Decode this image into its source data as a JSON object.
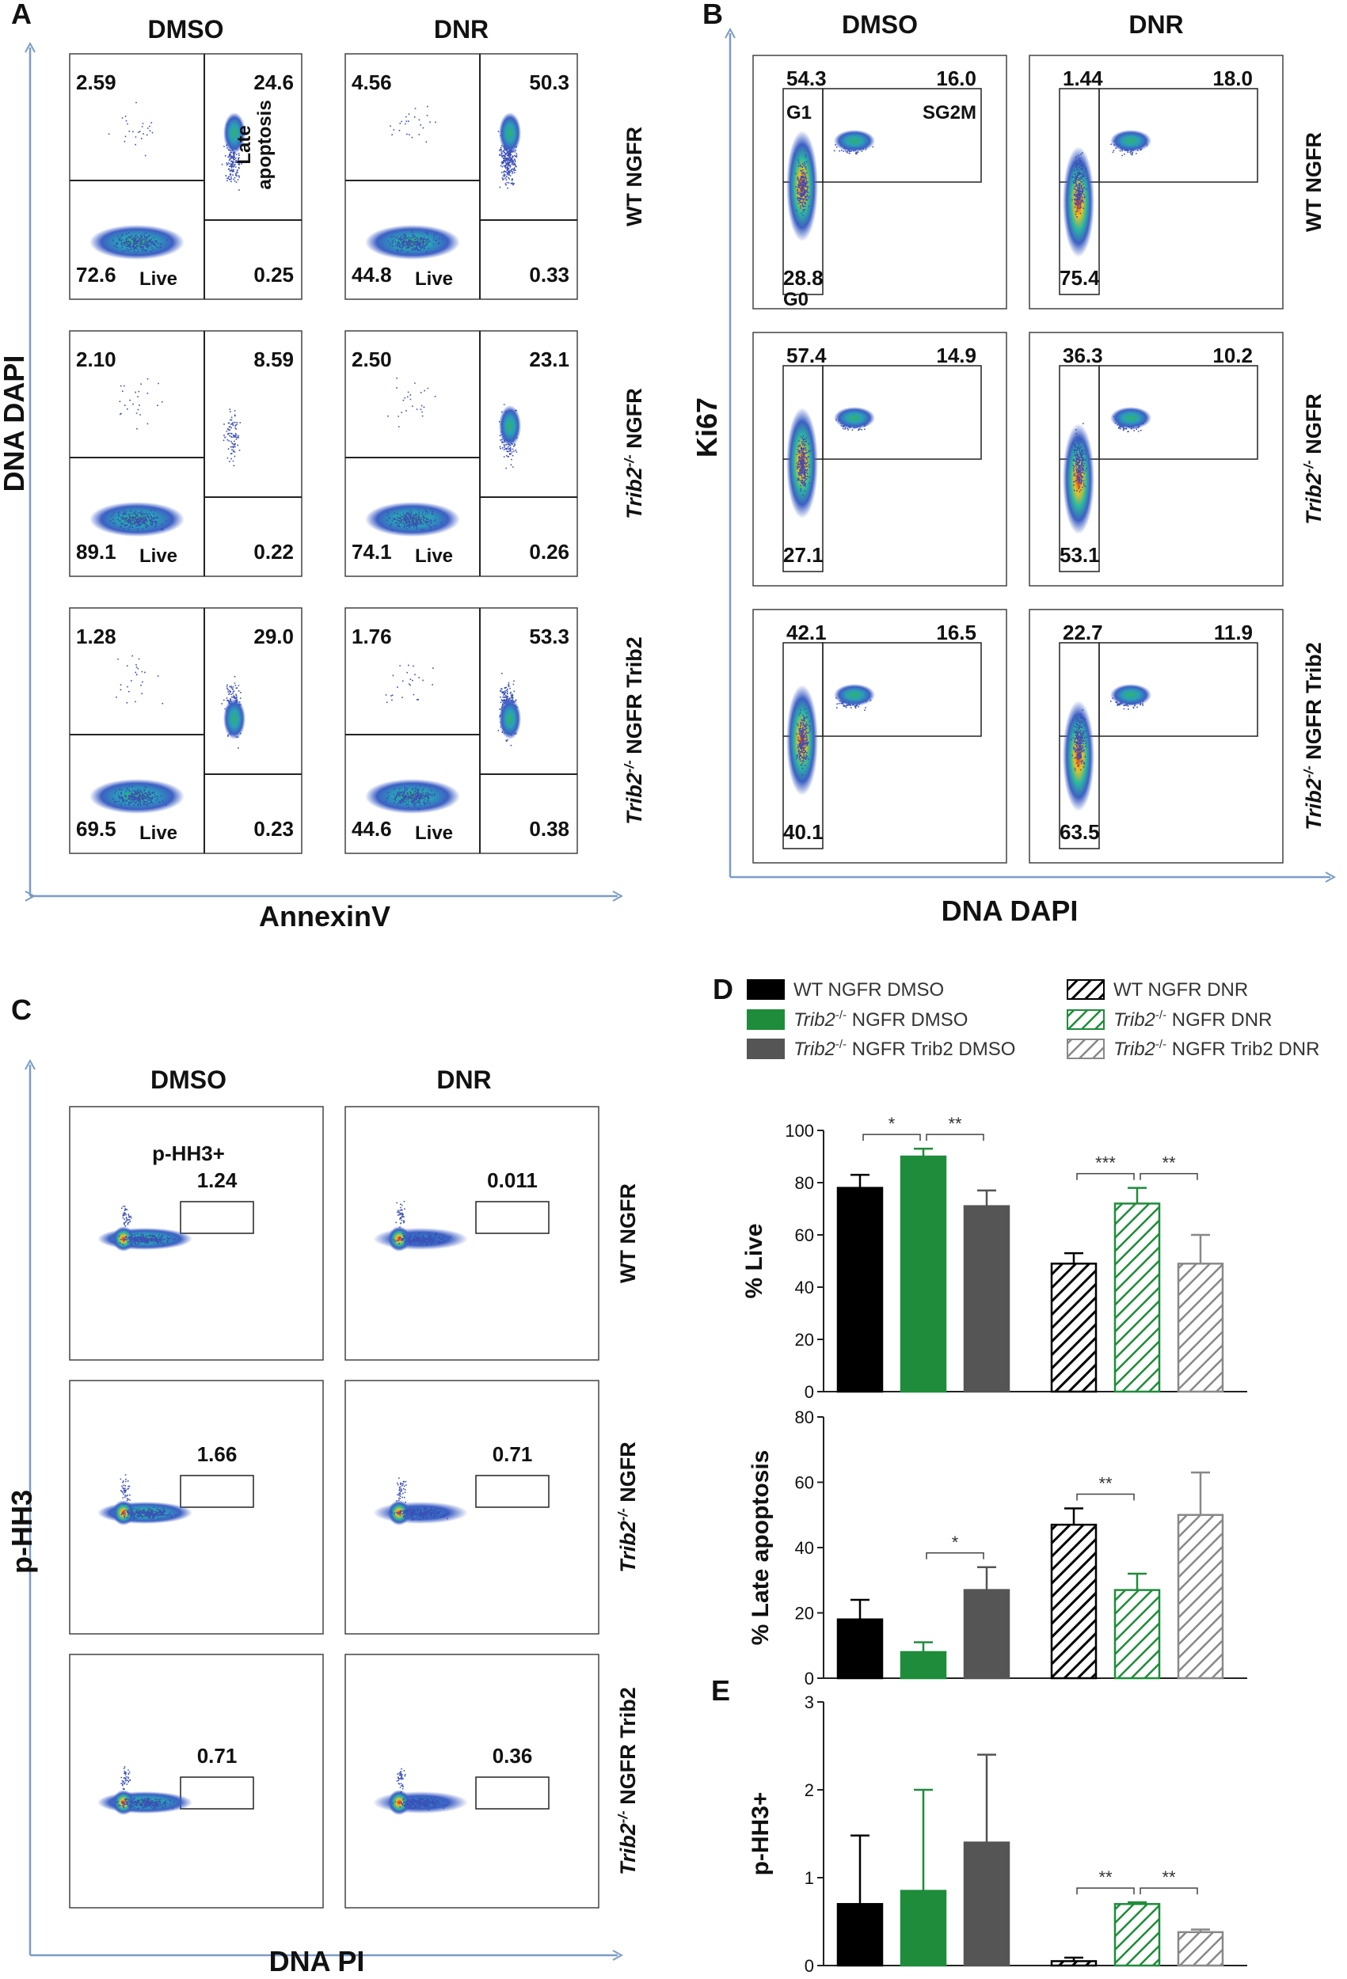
{
  "chart_data": [
    {
      "panel": "A",
      "type": "scatter",
      "columns": [
        "DMSO",
        "DNR"
      ],
      "rows": [
        "WT NGFR",
        "Trib2-/- NGFR",
        "Trib2-/- NGFR Trib2"
      ],
      "xlabel": "AnnexinV",
      "ylabel": "DNA DAPI",
      "gate_labels": {
        "live": "Live",
        "late": "Late apoptosis"
      },
      "quadrants": [
        [
          {
            "ul": "2.59",
            "ur": "24.6",
            "ll": "72.6",
            "lr": "0.25"
          },
          {
            "ul": "4.56",
            "ur": "50.3",
            "ll": "44.8",
            "lr": "0.33"
          }
        ],
        [
          {
            "ul": "2.10",
            "ur": "8.59",
            "ll": "89.1",
            "lr": "0.22"
          },
          {
            "ul": "2.50",
            "ur": "23.1",
            "ll": "74.1",
            "lr": "0.26"
          }
        ],
        [
          {
            "ul": "1.28",
            "ur": "29.0",
            "ll": "69.5",
            "lr": "0.23"
          },
          {
            "ul": "1.76",
            "ur": "53.3",
            "ll": "44.6",
            "lr": "0.38"
          }
        ]
      ]
    },
    {
      "panel": "B",
      "type": "scatter",
      "columns": [
        "DMSO",
        "DNR"
      ],
      "rows": [
        "WT NGFR",
        "Trib2-/- NGFR",
        "Trib2-/- NGFR Trib2"
      ],
      "xlabel": "DNA DAPI",
      "ylabel": "Ki67",
      "gate_labels": {
        "g1": "G1",
        "sg2m": "SG2M",
        "g0": "G0"
      },
      "gates": [
        [
          {
            "g1": "54.3",
            "sg2m": "16.0",
            "g0": "28.8"
          },
          {
            "g1": "1.44",
            "sg2m": "18.0",
            "g0": "75.4"
          }
        ],
        [
          {
            "g1": "57.4",
            "sg2m": "14.9",
            "g0": "27.1"
          },
          {
            "g1": "36.3",
            "sg2m": "10.2",
            "g0": "53.1"
          }
        ],
        [
          {
            "g1": "42.1",
            "sg2m": "16.5",
            "g0": "40.1"
          },
          {
            "g1": "22.7",
            "sg2m": "11.9",
            "g0": "63.5"
          }
        ]
      ]
    },
    {
      "panel": "C",
      "type": "scatter",
      "columns": [
        "DMSO",
        "DNR"
      ],
      "rows": [
        "WT NGFR",
        "Trib2-/- NGFR",
        "Trib2-/- NGFR Trib2"
      ],
      "xlabel": "DNA PI",
      "ylabel": "p-HH3",
      "gate_label": "p-HH3+",
      "gates": [
        [
          "1.24",
          "0.011"
        ],
        [
          "1.66",
          "0.71"
        ],
        [
          "0.71",
          "0.36"
        ]
      ]
    },
    {
      "panel": "D",
      "type": "bar",
      "legend": [
        {
          "gene": "",
          "text": "WT NGFR DMSO",
          "color": "#000000",
          "hatch": false
        },
        {
          "gene": "Trib2",
          "text": " NGFR DMSO",
          "color": "#1e8c3a",
          "hatch": false
        },
        {
          "gene": "Trib2",
          "text": " NGFR Trib2 DMSO",
          "color": "#555555",
          "hatch": false
        },
        {
          "gene": "",
          "text": "WT NGFR DNR",
          "color": "#000000",
          "hatch": true
        },
        {
          "gene": "Trib2",
          "text": "  NGFR DNR",
          "color": "#1e8c3a",
          "hatch": true
        },
        {
          "gene": "Trib2",
          "text": " NGFR Trib2 DNR",
          "color": "#888888",
          "hatch": true
        }
      ],
      "subplots": [
        {
          "ylabel": "% Live",
          "ylim": [
            0,
            100
          ],
          "yticks": [
            "0",
            "20",
            "40",
            "60",
            "80",
            "100"
          ],
          "values": [
            78,
            90,
            71,
            49,
            72,
            49
          ],
          "errors": [
            5,
            3,
            6,
            4,
            6,
            11
          ],
          "significance": [
            {
              "from": 0,
              "to": 1,
              "label": "*"
            },
            {
              "from": 1,
              "to": 2,
              "label": "**"
            },
            {
              "from": 3,
              "to": 4,
              "label": "***"
            },
            {
              "from": 4,
              "to": 5,
              "label": "**"
            }
          ]
        },
        {
          "ylabel": "% Late apoptosis",
          "ylim": [
            0,
            80
          ],
          "yticks": [
            "0",
            "20",
            "40",
            "60",
            "80"
          ],
          "values": [
            18,
            8,
            27,
            47,
            27,
            50
          ],
          "errors": [
            6,
            3,
            7,
            5,
            5,
            13
          ],
          "significance": [
            {
              "from": 1,
              "to": 2,
              "label": "*"
            },
            {
              "from": 3,
              "to": 4,
              "label": "**"
            }
          ]
        }
      ]
    },
    {
      "panel": "E",
      "type": "bar",
      "ylabel": "p-HH3+",
      "ylim": [
        0,
        3
      ],
      "yticks": [
        "0",
        "1",
        "2",
        "3"
      ],
      "values": [
        0.7,
        0.85,
        1.4,
        0.05,
        0.7,
        0.38
      ],
      "errors": [
        0.78,
        1.15,
        1.0,
        0.04,
        0.02,
        0.03
      ],
      "significance": [
        {
          "from": 3,
          "to": 4,
          "label": "**"
        },
        {
          "from": 4,
          "to": 5,
          "label": "**"
        }
      ]
    }
  ]
}
